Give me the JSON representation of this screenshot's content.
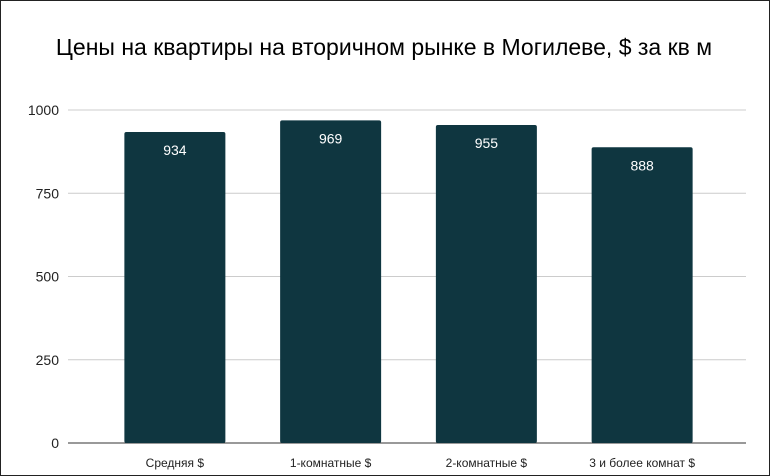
{
  "chart_data": {
    "type": "bar",
    "title": "Цены на квартиры на вторичном рынке в Могилеве, $ за кв м",
    "categories": [
      "Средняя $",
      "1-комнатные $",
      "2-комнатные $",
      "3 и более комнат $"
    ],
    "values": [
      934,
      969,
      955,
      888
    ],
    "data_labels": [
      "934",
      "969",
      "955",
      "888"
    ],
    "xlabel": "",
    "ylabel": "",
    "ylim": [
      0,
      1000
    ],
    "yticks": [
      "0",
      "250",
      "500",
      "750",
      "1000"
    ],
    "grid": true,
    "legend": "none",
    "bar_color": "#0f3640",
    "label_color": "#ffffff"
  }
}
